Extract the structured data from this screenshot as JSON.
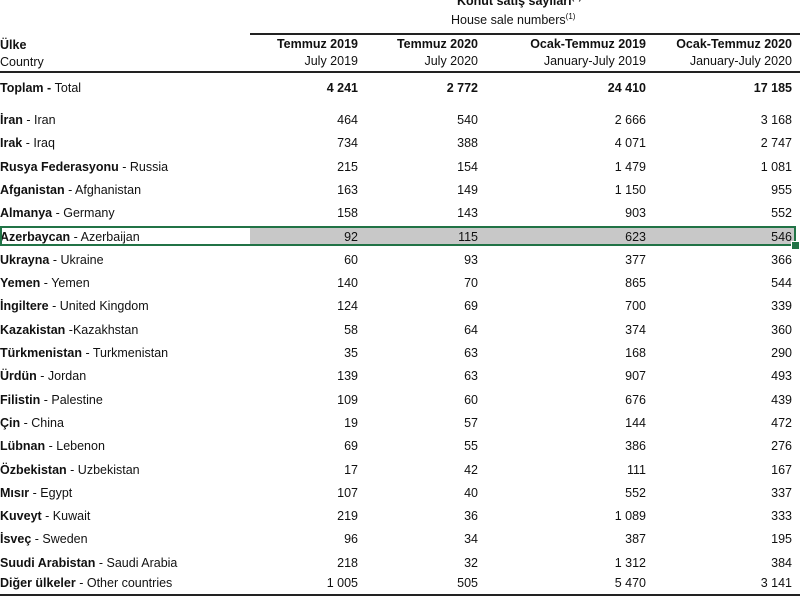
{
  "header": {
    "title_tr": "Konut satış sayıları",
    "title_en": "House sale numbers",
    "footnote": "(1)",
    "country_tr": "Ülke",
    "country_en": "Country",
    "columns": [
      {
        "tr": "Temmuz 2019",
        "en": "July 2019"
      },
      {
        "tr": "Temmuz 2020",
        "en": "July 2020"
      },
      {
        "tr": "Ocak-Temmuz 2019",
        "en": "January-July 2019"
      },
      {
        "tr": "Ocak-Temmuz 2020",
        "en": "January-July 2020"
      }
    ]
  },
  "total": {
    "tr": "Toplam",
    "en": "Total",
    "values": [
      "4 241",
      "2 772",
      "24 410",
      "17 185"
    ]
  },
  "rows": [
    {
      "tr": "İran",
      "sep": " - ",
      "en": "Iran",
      "values": [
        "464",
        "540",
        "2 666",
        "3 168"
      ]
    },
    {
      "tr": "Irak",
      "sep": " - ",
      "en": "Iraq",
      "values": [
        "734",
        "388",
        "4 071",
        "2 747"
      ]
    },
    {
      "tr": "Rusya Federasyonu",
      "sep": " - ",
      "en": "Russia",
      "values": [
        "215",
        "154",
        "1 479",
        "1 081"
      ]
    },
    {
      "tr": "Afganistan",
      "sep": " - ",
      "en": "Afghanistan",
      "values": [
        "163",
        "149",
        "1 150",
        "955"
      ]
    },
    {
      "tr": "Almanya",
      "sep": " - ",
      "en": "Germany",
      "values": [
        "158",
        "143",
        "903",
        "552"
      ]
    },
    {
      "tr": "Azerbaycan",
      "sep": " - ",
      "en": "Azerbaijan",
      "values": [
        "92",
        "115",
        "623",
        "546"
      ],
      "selected": true
    },
    {
      "tr": "Ukrayna",
      "sep": " - ",
      "en": "Ukraine",
      "values": [
        "60",
        "93",
        "377",
        "366"
      ]
    },
    {
      "tr": "Yemen",
      "sep": " - ",
      "en": "Yemen",
      "values": [
        "140",
        "70",
        "865",
        "544"
      ]
    },
    {
      "tr": "İngiltere",
      "sep": " - ",
      "en": "United Kingdom",
      "values": [
        "124",
        "69",
        "700",
        "339"
      ]
    },
    {
      "tr": "Kazakistan",
      "sep": " -",
      "en": "Kazakhstan",
      "values": [
        "58",
        "64",
        "374",
        "360"
      ]
    },
    {
      "tr": "Türkmenistan",
      "sep": " - ",
      "en": "Turkmenistan",
      "values": [
        "35",
        "63",
        "168",
        "290"
      ]
    },
    {
      "tr": "Ürdün",
      "sep": " - ",
      "en": "Jordan",
      "values": [
        "139",
        "63",
        "907",
        "493"
      ]
    },
    {
      "tr": "Filistin",
      "sep": " - ",
      "en": "Palestine",
      "values": [
        "109",
        "60",
        "676",
        "439"
      ]
    },
    {
      "tr": "Çin",
      "sep": " - ",
      "en": "China",
      "values": [
        "19",
        "57",
        "144",
        "472"
      ]
    },
    {
      "tr": "Lübnan",
      "sep": " - ",
      "en": "Lebenon",
      "values": [
        "69",
        "55",
        "386",
        "276"
      ]
    },
    {
      "tr": "Özbekistan",
      "sep": " - ",
      "en": "Uzbekistan",
      "values": [
        "17",
        "42",
        "111",
        "167"
      ]
    },
    {
      "tr": "Mısır",
      "sep": " - ",
      "en": "Egypt",
      "values": [
        "107",
        "40",
        "552",
        "337"
      ]
    },
    {
      "tr": "Kuveyt",
      "sep": " - ",
      "en": "Kuwait",
      "values": [
        "219",
        "36",
        "1 089",
        "333"
      ]
    },
    {
      "tr": "İsveç",
      "sep": " - ",
      "en": "Sweden",
      "values": [
        "96",
        "34",
        "387",
        "195"
      ]
    },
    {
      "tr": "Suudi Arabistan",
      "sep": " - ",
      "en": "Saudi Arabia",
      "values": [
        "218",
        "32",
        "1 312",
        "384"
      ]
    },
    {
      "tr": "Diğer ülkeler",
      "sep": " - ",
      "en": "Other countries",
      "values": [
        "1 005",
        "505",
        "5 470",
        "3 141"
      ]
    }
  ],
  "colors": {
    "selection": "#217346",
    "selection_fill": "#c8c8c8"
  }
}
